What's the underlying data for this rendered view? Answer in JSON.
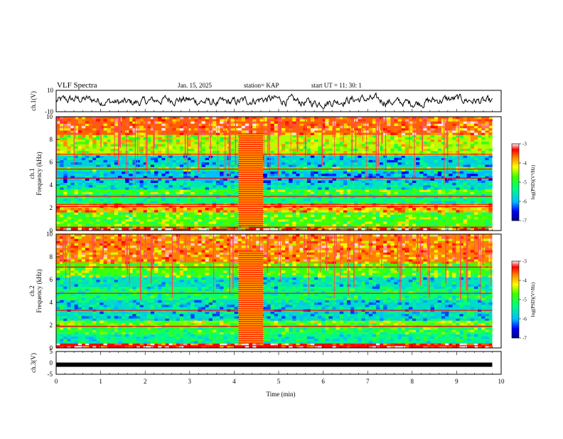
{
  "header": {
    "title": "VLF Spectra",
    "date": "Jan. 15, 2025",
    "station": "station= KAP",
    "start": "start  UT =   11: 30: 1"
  },
  "chart_data": [
    {
      "type": "line",
      "name": "ch1-waveform",
      "ylabel": "ch.1(V)",
      "ylim": [
        -10,
        10
      ],
      "ytick_labels": [
        "10",
        "-10"
      ],
      "xlim": [
        0,
        10
      ],
      "y_range_observed": [
        -7,
        8
      ]
    },
    {
      "type": "heatmap",
      "name": "ch1-spectrogram",
      "ylabel_line1": "ch.1",
      "ylabel_line2": "Frequency (kHz)",
      "ylim": [
        0,
        10
      ],
      "ytick_labels": [
        "0",
        "2",
        "4",
        "6",
        "8",
        "10"
      ],
      "xlim": [
        0,
        9.8
      ],
      "colorbar": {
        "label": "log(PSD)(V²/Hz)",
        "range": [
          -7,
          -3
        ],
        "tick_labels": [
          "-3",
          "-4",
          "-5",
          "-6",
          "-7"
        ],
        "colors": [
          "#000080",
          "#0000ff",
          "#00bfff",
          "#00ff80",
          "#ffff00",
          "#ff8000",
          "#ff0000",
          "#ffffff"
        ]
      },
      "bands": [
        {
          "f": [
            0.0,
            0.3
          ],
          "level": -3.3
        },
        {
          "f": [
            0.3,
            1.6
          ],
          "level": -4.7
        },
        {
          "f": [
            1.6,
            2.4
          ],
          "level": -3.9
        },
        {
          "f": [
            2.4,
            3.2
          ],
          "level": -5.3
        },
        {
          "f": [
            3.2,
            3.6
          ],
          "level": -4.7
        },
        {
          "f": [
            3.6,
            4.3
          ],
          "level": -5.6
        },
        {
          "f": [
            4.3,
            5.3
          ],
          "level": -6.0
        },
        {
          "f": [
            5.3,
            5.6
          ],
          "level": -5.0
        },
        {
          "f": [
            5.6,
            6.6
          ],
          "level": -5.8
        },
        {
          "f": [
            6.6,
            8.4
          ],
          "level": -4.4
        },
        {
          "f": [
            8.4,
            10.0
          ],
          "level": -3.6
        }
      ],
      "hot_lines_khz": [
        0.3,
        2.1,
        2.3,
        3.0,
        4.6,
        5.4,
        6.7
      ],
      "burst": {
        "t": [
          4.1,
          4.65
        ],
        "level": -3.2
      }
    },
    {
      "type": "heatmap",
      "name": "ch2-spectrogram",
      "ylabel_line1": "ch.2",
      "ylabel_line2": "Frequency (kHz)",
      "ylim": [
        0,
        10
      ],
      "ytick_labels": [
        "0",
        "2",
        "4",
        "6",
        "8",
        "10"
      ],
      "xlim": [
        0,
        9.8
      ],
      "colorbar": {
        "label": "log(PSD)(V²/Hz)",
        "range": [
          -7,
          -3
        ],
        "tick_labels": [
          "-3",
          "-4",
          "-5",
          "-6",
          "-7"
        ],
        "colors": [
          "#000080",
          "#0000ff",
          "#00bfff",
          "#00ff80",
          "#ffff00",
          "#ff8000",
          "#ff0000",
          "#ffffff"
        ]
      },
      "bands": [
        {
          "f": [
            0.0,
            0.4
          ],
          "level": -3.3
        },
        {
          "f": [
            0.4,
            1.3
          ],
          "level": -5.4
        },
        {
          "f": [
            1.3,
            2.0
          ],
          "level": -5.0
        },
        {
          "f": [
            2.0,
            2.4
          ],
          "level": -4.6
        },
        {
          "f": [
            2.4,
            4.3
          ],
          "level": -5.7
        },
        {
          "f": [
            4.3,
            5.3
          ],
          "level": -5.2
        },
        {
          "f": [
            5.3,
            6.3
          ],
          "level": -5.6
        },
        {
          "f": [
            6.3,
            7.5
          ],
          "level": -4.7
        },
        {
          "f": [
            7.5,
            10.0
          ],
          "level": -3.7
        }
      ],
      "hot_lines_khz": [
        0.2,
        1.9,
        3.3,
        4.8,
        7.1
      ],
      "burst": {
        "t": [
          4.1,
          4.65
        ],
        "level": -3.2
      }
    },
    {
      "type": "line",
      "name": "ch3-signal",
      "ylabel": "ch.3(V)",
      "ylim": [
        -5,
        5
      ],
      "ytick_labels": [
        "5",
        "0",
        "-5"
      ],
      "xlim": [
        0,
        10
      ],
      "level_v": -0.8,
      "xlabel": "Time (min)",
      "xtick_labels": [
        "0",
        "1",
        "2",
        "3",
        "4",
        "5",
        "6",
        "7",
        "8",
        "9",
        "10"
      ]
    }
  ]
}
